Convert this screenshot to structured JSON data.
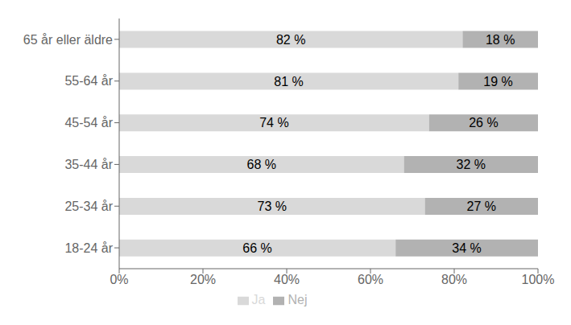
{
  "chart_data": {
    "type": "bar",
    "orientation": "horizontal",
    "stacked": true,
    "categories": [
      "65 år eller äldre",
      "55-64 år",
      "45-54 år",
      "35-44 år",
      "25-34 år",
      "18-24 år"
    ],
    "series": [
      {
        "name": "Ja",
        "color": "#d9d9d9",
        "values": [
          82,
          81,
          74,
          68,
          73,
          66
        ],
        "value_labels": [
          "82 %",
          "81 %",
          "74 %",
          "68 %",
          "73 %",
          "66 %"
        ]
      },
      {
        "name": "Nej",
        "color": "#b2b2b2",
        "values": [
          18,
          19,
          26,
          32,
          27,
          34
        ],
        "value_labels": [
          "18 %",
          "19 %",
          "26 %",
          "32 %",
          "27 %",
          "34 %"
        ]
      }
    ],
    "xlim": [
      0,
      100
    ],
    "xticks": [
      {
        "value": 0,
        "label": "0%"
      },
      {
        "value": 20,
        "label": "20%"
      },
      {
        "value": 40,
        "label": "40%"
      },
      {
        "value": 60,
        "label": "60%"
      },
      {
        "value": 80,
        "label": "80%"
      },
      {
        "value": 100,
        "label": "100%"
      }
    ],
    "grid": false,
    "legend": "bottom",
    "data_labels": true
  }
}
